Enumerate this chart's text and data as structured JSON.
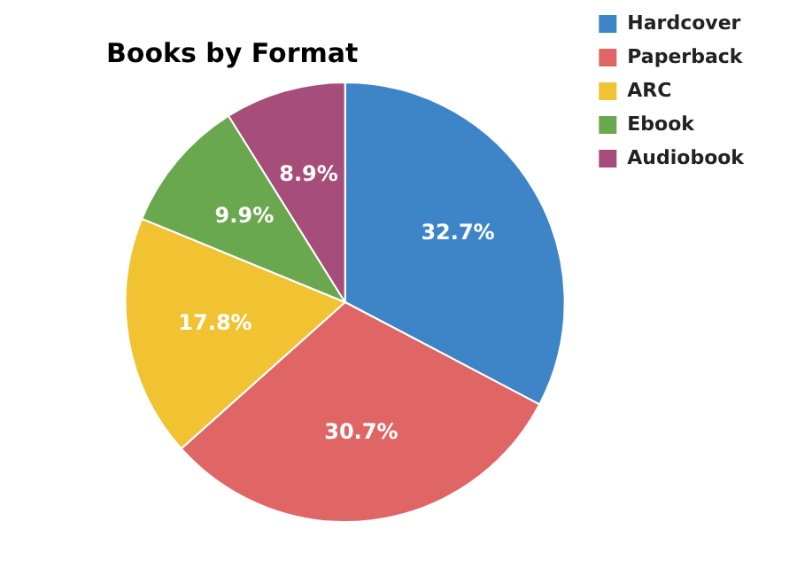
{
  "chart_data": {
    "type": "pie",
    "title": "Books by Format",
    "categories": [
      "Hardcover",
      "Paperback",
      "ARC",
      "Ebook",
      "Audiobook"
    ],
    "values": [
      32.7,
      30.7,
      17.8,
      9.9,
      8.9
    ],
    "value_labels": [
      "32.7%",
      "30.7%",
      "17.8%",
      "9.9%",
      "8.9%"
    ],
    "colors": [
      "#3d85c6",
      "#e06666",
      "#f1c232",
      "#6aa84f",
      "#a64d79"
    ],
    "legend": "top right"
  }
}
